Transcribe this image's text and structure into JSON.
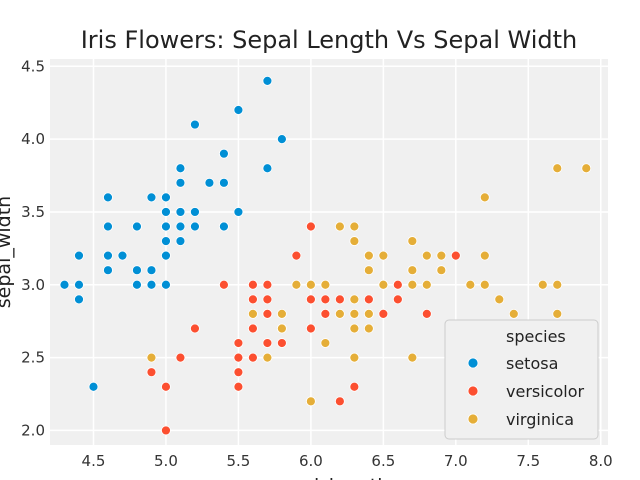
{
  "chart_data": {
    "type": "scatter",
    "title": "Iris Flowers: Sepal Length Vs Sepal Width",
    "xlabel": "sepal_length",
    "ylabel": "sepal_width",
    "xlim": [
      4.2,
      8.05
    ],
    "ylim": [
      1.9,
      4.55
    ],
    "xticks": [
      "4.5",
      "5.0",
      "5.5",
      "6.0",
      "6.5",
      "7.0",
      "7.5",
      "8.0"
    ],
    "yticks": [
      "2.0",
      "2.5",
      "3.0",
      "3.5",
      "4.0",
      "4.5"
    ],
    "grid": true,
    "background": "#f0f0f0",
    "legend": {
      "title": "species",
      "position": "lower-right"
    },
    "series": [
      {
        "name": "setosa",
        "color": "#008fd5",
        "points": [
          [
            5.1,
            3.5
          ],
          [
            4.9,
            3.0
          ],
          [
            4.7,
            3.2
          ],
          [
            4.6,
            3.1
          ],
          [
            5.0,
            3.6
          ],
          [
            5.4,
            3.9
          ],
          [
            4.6,
            3.4
          ],
          [
            5.0,
            3.4
          ],
          [
            4.4,
            2.9
          ],
          [
            4.9,
            3.1
          ],
          [
            5.4,
            3.7
          ],
          [
            4.8,
            3.4
          ],
          [
            4.8,
            3.0
          ],
          [
            4.3,
            3.0
          ],
          [
            5.8,
            4.0
          ],
          [
            5.7,
            4.4
          ],
          [
            5.4,
            3.9
          ],
          [
            5.1,
            3.5
          ],
          [
            5.7,
            3.8
          ],
          [
            5.1,
            3.8
          ],
          [
            5.4,
            3.4
          ],
          [
            5.1,
            3.7
          ],
          [
            4.6,
            3.6
          ],
          [
            5.1,
            3.3
          ],
          [
            4.8,
            3.4
          ],
          [
            5.0,
            3.0
          ],
          [
            5.0,
            3.4
          ],
          [
            5.2,
            3.5
          ],
          [
            5.2,
            3.4
          ],
          [
            4.7,
            3.2
          ],
          [
            4.8,
            3.1
          ],
          [
            5.4,
            3.4
          ],
          [
            5.2,
            4.1
          ],
          [
            5.5,
            4.2
          ],
          [
            4.9,
            3.1
          ],
          [
            5.0,
            3.2
          ],
          [
            5.5,
            3.5
          ],
          [
            4.9,
            3.6
          ],
          [
            4.4,
            3.0
          ],
          [
            5.1,
            3.4
          ],
          [
            5.0,
            3.5
          ],
          [
            4.5,
            2.3
          ],
          [
            4.4,
            3.2
          ],
          [
            5.0,
            3.5
          ],
          [
            5.1,
            3.8
          ],
          [
            4.8,
            3.0
          ],
          [
            5.1,
            3.8
          ],
          [
            4.6,
            3.2
          ],
          [
            5.3,
            3.7
          ],
          [
            5.0,
            3.3
          ]
        ]
      },
      {
        "name": "versicolor",
        "color": "#fc4f30",
        "points": [
          [
            7.0,
            3.2
          ],
          [
            6.4,
            3.2
          ],
          [
            6.9,
            3.1
          ],
          [
            5.5,
            2.3
          ],
          [
            6.5,
            2.8
          ],
          [
            5.7,
            2.8
          ],
          [
            6.3,
            3.3
          ],
          [
            4.9,
            2.4
          ],
          [
            6.6,
            2.9
          ],
          [
            5.2,
            2.7
          ],
          [
            5.0,
            2.0
          ],
          [
            5.9,
            3.0
          ],
          [
            6.0,
            2.2
          ],
          [
            6.1,
            2.9
          ],
          [
            5.6,
            2.9
          ],
          [
            6.7,
            3.1
          ],
          [
            5.6,
            3.0
          ],
          [
            5.8,
            2.7
          ],
          [
            6.2,
            2.2
          ],
          [
            5.6,
            2.5
          ],
          [
            5.9,
            3.2
          ],
          [
            6.1,
            2.8
          ],
          [
            6.3,
            2.5
          ],
          [
            6.1,
            2.8
          ],
          [
            6.4,
            2.9
          ],
          [
            6.6,
            3.0
          ],
          [
            6.8,
            2.8
          ],
          [
            6.7,
            3.0
          ],
          [
            6.0,
            2.9
          ],
          [
            5.7,
            2.6
          ],
          [
            5.5,
            2.4
          ],
          [
            5.5,
            2.4
          ],
          [
            5.8,
            2.7
          ],
          [
            6.0,
            2.7
          ],
          [
            5.4,
            3.0
          ],
          [
            6.0,
            3.4
          ],
          [
            6.7,
            3.1
          ],
          [
            6.3,
            2.3
          ],
          [
            5.6,
            3.0
          ],
          [
            5.5,
            2.5
          ],
          [
            5.5,
            2.6
          ],
          [
            6.1,
            3.0
          ],
          [
            5.8,
            2.6
          ],
          [
            5.0,
            2.3
          ],
          [
            5.6,
            2.7
          ],
          [
            5.7,
            3.0
          ],
          [
            5.7,
            2.9
          ],
          [
            6.2,
            2.9
          ],
          [
            5.1,
            2.5
          ],
          [
            5.7,
            2.8
          ]
        ]
      },
      {
        "name": "virginica",
        "color": "#e5ae38",
        "points": [
          [
            6.3,
            3.3
          ],
          [
            5.8,
            2.7
          ],
          [
            7.1,
            3.0
          ],
          [
            6.3,
            2.9
          ],
          [
            6.5,
            3.0
          ],
          [
            7.6,
            3.0
          ],
          [
            4.9,
            2.5
          ],
          [
            7.3,
            2.9
          ],
          [
            6.7,
            2.5
          ],
          [
            7.2,
            3.6
          ],
          [
            6.5,
            3.2
          ],
          [
            6.4,
            2.7
          ],
          [
            6.8,
            3.0
          ],
          [
            5.7,
            2.5
          ],
          [
            5.8,
            2.8
          ],
          [
            6.4,
            3.2
          ],
          [
            6.5,
            3.0
          ],
          [
            7.7,
            3.8
          ],
          [
            7.7,
            2.6
          ],
          [
            6.0,
            2.2
          ],
          [
            6.9,
            3.2
          ],
          [
            5.6,
            2.8
          ],
          [
            7.7,
            2.8
          ],
          [
            6.3,
            2.7
          ],
          [
            6.7,
            3.3
          ],
          [
            7.2,
            3.2
          ],
          [
            6.2,
            2.8
          ],
          [
            6.1,
            3.0
          ],
          [
            6.4,
            2.8
          ],
          [
            7.2,
            3.0
          ],
          [
            7.4,
            2.8
          ],
          [
            7.9,
            3.8
          ],
          [
            6.4,
            2.8
          ],
          [
            6.3,
            2.8
          ],
          [
            6.1,
            2.6
          ],
          [
            7.7,
            3.0
          ],
          [
            6.3,
            3.4
          ],
          [
            6.4,
            3.1
          ],
          [
            6.0,
            3.0
          ],
          [
            6.9,
            3.1
          ],
          [
            6.7,
            3.1
          ],
          [
            6.9,
            3.1
          ],
          [
            5.8,
            2.7
          ],
          [
            6.8,
            3.2
          ],
          [
            6.7,
            3.3
          ],
          [
            6.7,
            3.0
          ],
          [
            6.3,
            2.5
          ],
          [
            6.5,
            3.0
          ],
          [
            6.2,
            3.4
          ],
          [
            5.9,
            3.0
          ]
        ]
      }
    ]
  }
}
